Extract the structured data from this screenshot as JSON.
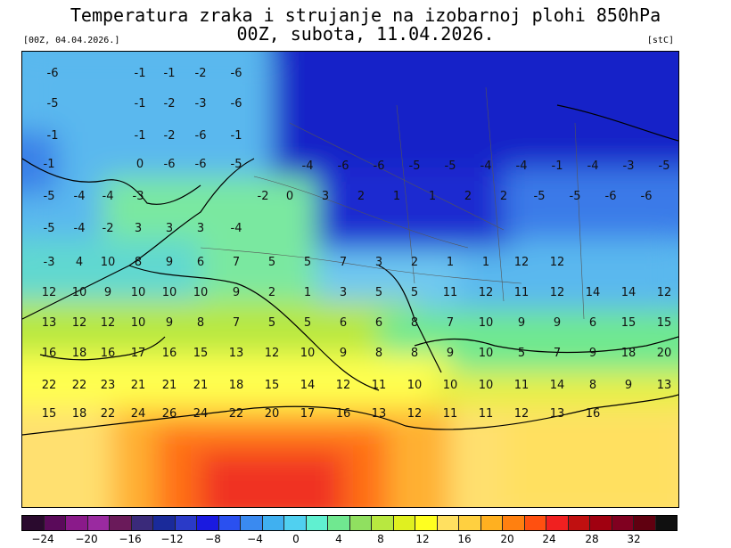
{
  "header": {
    "title_line1": "Temperatura zraka i strujanje na izobarnoj plohi 850hPa",
    "title_line2": "00Z, subota, 11.04.2026.",
    "run_label": "[00Z, 04.04.2026.]",
    "unit_label": "[stC]"
  },
  "colorbar": {
    "colors": [
      "#2a0a2e",
      "#5a0a5a",
      "#8a1a8a",
      "#9a2aa0",
      "#6a1a5a",
      "#3a2a7a",
      "#1a2a9a",
      "#2a3ac8",
      "#1a1ae0",
      "#2a50f0",
      "#3a8af0",
      "#40b0f0",
      "#50d0f0",
      "#60f0d0",
      "#70e890",
      "#90e060",
      "#b8e840",
      "#e0f020",
      "#ffff20",
      "#ffe060",
      "#ffd040",
      "#ffb020",
      "#ff8010",
      "#ff5010",
      "#f02020",
      "#c01010",
      "#a00010",
      "#800020",
      "#600010",
      "#101010"
    ],
    "tick_labels": [
      "−24",
      "−20",
      "−16",
      "−12",
      "−8",
      "−4",
      "0",
      "4",
      "8",
      "12",
      "16",
      "20",
      "24",
      "28",
      "32"
    ]
  },
  "map": {
    "temperature_labels": [
      "-6",
      "-1",
      "-1",
      "-2",
      "-6",
      "-5",
      "-1",
      "-2",
      "-3",
      "-6",
      "-1",
      "-1",
      "-2",
      "-6",
      "-1",
      "-1",
      "0",
      "-6",
      "-6",
      "-5",
      "-4",
      "-6",
      "-6",
      "-5",
      "-5",
      "-4",
      "-4",
      "-1",
      "-4",
      "-3",
      "-5",
      "-5",
      "-4",
      "-4",
      "-3",
      "-2",
      "0",
      "3",
      "2",
      "1",
      "1",
      "2",
      "2",
      "-5",
      "-5",
      "-6",
      "-6",
      "-5",
      "-4",
      "-2",
      "3",
      "3",
      "3",
      "-4",
      "-3",
      "4",
      "10",
      "8",
      "9",
      "6",
      "7",
      "5",
      "5",
      "7",
      "3",
      "2",
      "1",
      "1",
      "12",
      "12",
      "12",
      "10",
      "9",
      "10",
      "10",
      "10",
      "9",
      "2",
      "1",
      "3",
      "5",
      "5",
      "11",
      "12",
      "11",
      "12",
      "14",
      "14",
      "12",
      "13",
      "12",
      "12",
      "10",
      "9",
      "8",
      "7",
      "5",
      "5",
      "6",
      "6",
      "8",
      "7",
      "10",
      "9",
      "9",
      "6",
      "15",
      "15",
      "16",
      "18",
      "16",
      "17",
      "16",
      "15",
      "13",
      "12",
      "10",
      "9",
      "8",
      "8",
      "9",
      "10",
      "5",
      "7",
      "9",
      "18",
      "20",
      "22",
      "22",
      "23",
      "21",
      "21",
      "21",
      "18",
      "15",
      "14",
      "12",
      "11",
      "10",
      "10",
      "10",
      "11",
      "14",
      "8",
      "9",
      "13",
      "15",
      "18",
      "22",
      "24",
      "26",
      "24",
      "22",
      "20",
      "17",
      "16",
      "13",
      "12",
      "11",
      "11",
      "12",
      "13",
      "16"
    ]
  }
}
